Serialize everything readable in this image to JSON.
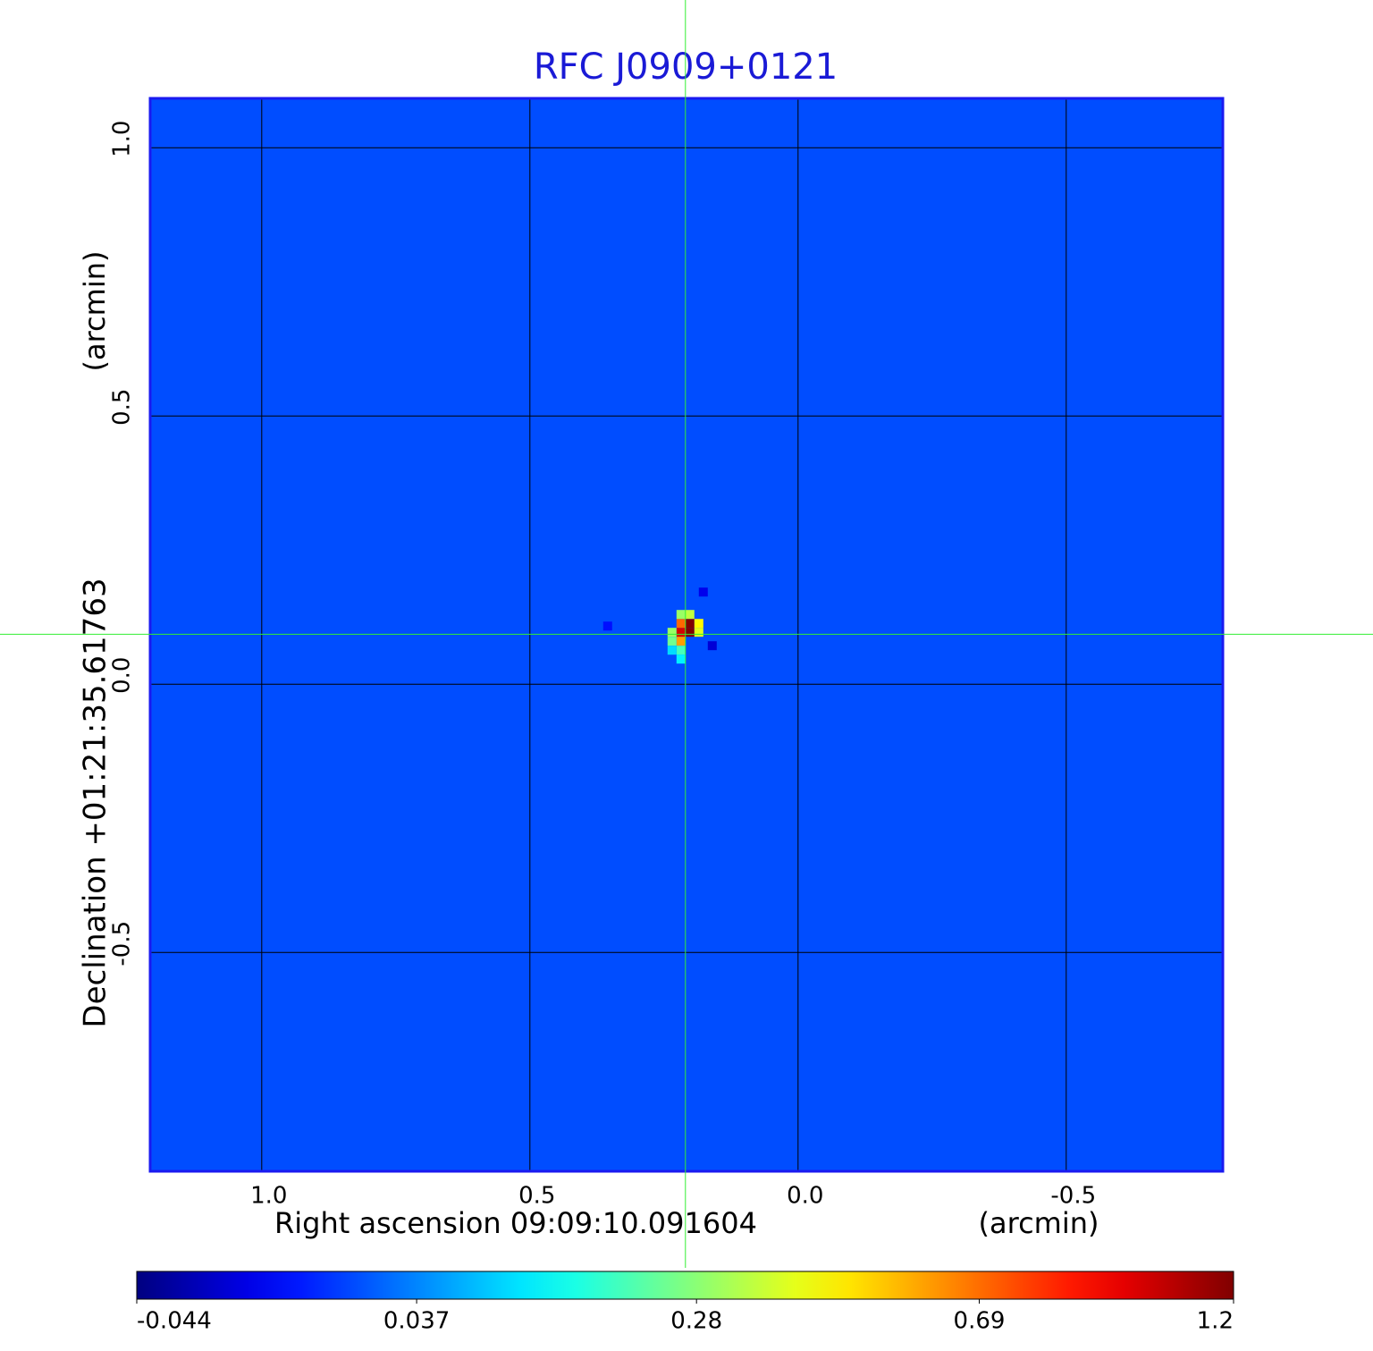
{
  "chart_data": {
    "type": "image",
    "title": "RFC J0909+0121",
    "x_label": "Right ascension  09:09:10.091604",
    "x_unit": "(arcmin)",
    "y_label": "Declination  +01:21:35.61763",
    "y_unit": "(arcmin)",
    "xlim": [
      1.208,
      -0.792
    ],
    "ylim": [
      -0.908,
      1.092
    ],
    "xticks": [
      {
        "value": 1,
        "label": "1.0"
      },
      0.5,
      {
        "value": 0,
        "label": "0.0"
      },
      -0.5
    ],
    "yticks": [
      {
        "value": 1,
        "label": "1.0"
      },
      0.5,
      {
        "value": 0,
        "label": "0.0"
      },
      -0.5
    ],
    "grid": true,
    "colormap": "jet",
    "background_value": 0.006,
    "pixels": {
      "x": [
        0.2017,
        0.2183,
        0.2017,
        0.2183,
        0.185,
        0.235,
        0.2183,
        0.235,
        0.2183,
        0.2017,
        0.2183,
        0.185,
        0.2183,
        0.235,
        0.1767,
        0.16,
        0.355
      ],
      "y": [
        0.1133,
        0.0967,
        0.0967,
        0.1133,
        0.1133,
        0.0967,
        0.08,
        0.08,
        0.0633,
        0.13,
        0.13,
        0.0967,
        0.0467,
        0.0633,
        0.1717,
        0.0717,
        0.1083
      ],
      "values": [
        1.2,
        1.0,
        1.2,
        0.7,
        0.45,
        0.3,
        0.6,
        0.25,
        0.2,
        0.35,
        0.3,
        0.4,
        0.12,
        0.1,
        -0.03,
        -0.035,
        -0.02
      ]
    },
    "crosshair": {
      "x": 0.21,
      "y": 0.093,
      "color": "#33ee33"
    },
    "colorbar": {
      "lim": [
        -0.044,
        1.2
      ],
      "scale": "sqrt",
      "ticks": [
        -0.044,
        0.037,
        0.28,
        0.69,
        1.2
      ]
    }
  }
}
